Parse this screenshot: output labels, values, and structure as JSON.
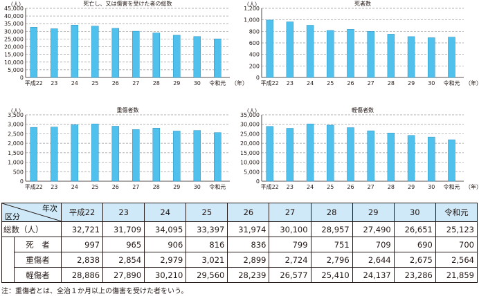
{
  "chart_data": [
    {
      "type": "bar",
      "title": "死亡し、又は傷害を受けた者の総数",
      "unit": "（人）",
      "xunit": "（年）",
      "ylim": [
        0,
        45000
      ],
      "yticks": [
        "0",
        "5,000",
        "10,000",
        "15,000",
        "20,000",
        "25,000",
        "30,000",
        "35,000",
        "40,000",
        "45,000"
      ],
      "categories": [
        "平成22",
        "23",
        "24",
        "25",
        "26",
        "27",
        "28",
        "29",
        "30",
        "令和元"
      ],
      "values": [
        32721,
        31709,
        34095,
        33397,
        31974,
        30100,
        28957,
        27490,
        26651,
        25123
      ]
    },
    {
      "type": "bar",
      "title": "死者数",
      "unit": "（人）",
      "xunit": "（年）",
      "ylim": [
        0,
        1200
      ],
      "yticks": [
        "0",
        "200",
        "400",
        "600",
        "800",
        "1,000",
        "1,200"
      ],
      "categories": [
        "平成22",
        "23",
        "24",
        "25",
        "26",
        "27",
        "28",
        "29",
        "30",
        "令和元"
      ],
      "values": [
        997,
        965,
        906,
        816,
        836,
        799,
        751,
        709,
        690,
        700
      ]
    },
    {
      "type": "bar",
      "title": "重傷者数",
      "unit": "（人）",
      "xunit": "",
      "ylim": [
        0,
        3500
      ],
      "yticks": [
        "0",
        "500",
        "1,000",
        "1,500",
        "2,000",
        "2,500",
        "3,000",
        "3,500"
      ],
      "categories": [
        "平成22",
        "23",
        "24",
        "25",
        "26",
        "27",
        "28",
        "29",
        "30",
        "令和元"
      ],
      "values": [
        2838,
        2854,
        2979,
        3021,
        2899,
        2724,
        2796,
        2644,
        2675,
        2564
      ]
    },
    {
      "type": "bar",
      "title": "軽傷者数",
      "unit": "（人）",
      "xunit": "（年）",
      "ylim": [
        0,
        35000
      ],
      "yticks": [
        "0",
        "5,000",
        "10,000",
        "15,000",
        "20,000",
        "25,000",
        "30,000",
        "35,000"
      ],
      "categories": [
        "平成22",
        "23",
        "24",
        "25",
        "26",
        "27",
        "28",
        "29",
        "30",
        "令和元"
      ],
      "values": [
        28886,
        27890,
        30210,
        29560,
        28239,
        26577,
        25410,
        24137,
        23286,
        21859
      ]
    }
  ],
  "table": {
    "corner_row": "年次",
    "corner_col": "区分",
    "years": [
      "平成22",
      "23",
      "24",
      "25",
      "26",
      "27",
      "28",
      "29",
      "30",
      "令和元"
    ],
    "rows": [
      {
        "label": "総数（人）",
        "values": [
          "32,721",
          "31,709",
          "34,095",
          "33,397",
          "31,974",
          "30,100",
          "28,957",
          "27,490",
          "26,651",
          "25,123"
        ]
      },
      {
        "label": "死　者",
        "values": [
          "997",
          "965",
          "906",
          "816",
          "836",
          "799",
          "751",
          "709",
          "690",
          "700"
        ]
      },
      {
        "label": "重傷者",
        "values": [
          "2,838",
          "2,854",
          "2,979",
          "3,021",
          "2,899",
          "2,724",
          "2,796",
          "2,644",
          "2,675",
          "2,564"
        ]
      },
      {
        "label": "軽傷者",
        "values": [
          "28,886",
          "27,890",
          "30,210",
          "29,560",
          "28,239",
          "26,577",
          "25,410",
          "24,137",
          "23,286",
          "21,859"
        ]
      }
    ]
  },
  "note": "注：重傷者とは、全治１か月以上の傷害を受けた者をいう。",
  "colors": {
    "bar": "#4fc1ec",
    "bar_stroke": "#2a8fc0",
    "grid": "#999999",
    "axis": "#231815",
    "header_bg": "#cfe9f8"
  }
}
